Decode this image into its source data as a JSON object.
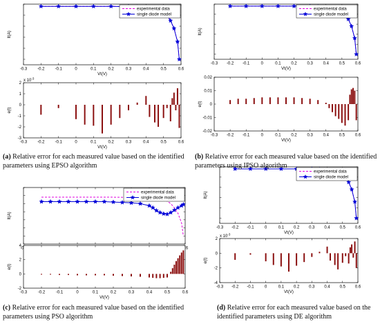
{
  "captions": [
    {
      "letter": "(a)",
      "text": " Relative error for each measured value based on the identified parameters using EPSO algorithm"
    },
    {
      "letter": "(b)",
      "text": " Relative error for each measured value based on the identified parameters using IPSO algorithm"
    },
    {
      "letter": "(c)",
      "text": " Relative error for each measured value based on the identified parameters using PSO algorithm"
    },
    {
      "letter": "(d)",
      "text": " Relative error for each measured value based on the identified parameters using DE algorithm"
    }
  ],
  "colors": {
    "experimental": "#e000e0",
    "model": "#0000d8",
    "bar": "#8b1010",
    "axis": "#000000"
  },
  "chart_data": [
    {
      "panel": "a-top",
      "type": "line",
      "xlabel": "Vt(V)",
      "ylabel": "It(A)",
      "xlim": [
        -0.3,
        0.6
      ],
      "ylim": [
        -0.3,
        0.8
      ],
      "xticks": [
        "-0.3",
        "-0.2",
        "-0.1",
        "0",
        "0.1",
        "0.2",
        "0.3",
        "0.4",
        "0.5",
        "0.6"
      ],
      "legend": {
        "position": "top-right",
        "entries": [
          "experimental data",
          "single diode model"
        ]
      },
      "series": [
        {
          "name": "experimental data",
          "style": "dashed",
          "x": [
            -0.2,
            -0.1,
            0,
            0.1,
            0.2,
            0.3,
            0.35,
            0.4,
            0.45,
            0.48,
            0.5,
            0.52,
            0.54,
            0.56,
            0.58,
            0.59
          ],
          "y": [
            0.76,
            0.76,
            0.76,
            0.76,
            0.76,
            0.755,
            0.75,
            0.74,
            0.72,
            0.69,
            0.66,
            0.6,
            0.5,
            0.36,
            0.12,
            -0.2
          ]
        },
        {
          "name": "single diode model",
          "style": "star",
          "x": [
            -0.2,
            -0.1,
            0,
            0.1,
            0.2,
            0.3,
            0.35,
            0.4,
            0.45,
            0.48,
            0.5,
            0.52,
            0.54,
            0.56,
            0.58,
            0.59
          ],
          "y": [
            0.76,
            0.76,
            0.76,
            0.76,
            0.76,
            0.755,
            0.75,
            0.74,
            0.72,
            0.69,
            0.66,
            0.6,
            0.5,
            0.36,
            0.12,
            -0.2
          ]
        }
      ]
    },
    {
      "panel": "a-bottom",
      "type": "bar",
      "xlabel": "Vt(V)",
      "ylabel": "e(t)",
      "exponent": "x 10",
      "xlim": [
        -0.3,
        0.6
      ],
      "ylim": [
        -3,
        2
      ],
      "xticks": [
        "-0.3",
        "-0.2",
        "-0.1",
        "0",
        "0.1",
        "0.2",
        "0.3",
        "0.4",
        "0.5",
        "0.6"
      ],
      "yticks": [
        "-3",
        "-2",
        "-1",
        "0",
        "1",
        "2"
      ],
      "x": [
        -0.2,
        -0.1,
        0,
        0.05,
        0.1,
        0.15,
        0.2,
        0.25,
        0.3,
        0.35,
        0.4,
        0.42,
        0.45,
        0.47,
        0.5,
        0.52,
        0.54,
        0.55,
        0.56,
        0.57,
        0.58,
        0.59
      ],
      "values": [
        -0.9,
        -0.3,
        -1.3,
        -1.8,
        -1.9,
        -2.6,
        -1.8,
        -1.2,
        -0.5,
        0.2,
        0.8,
        -1.1,
        -1.6,
        -2.0,
        -1.2,
        -0.3,
        -1.5,
        0.6,
        1.1,
        -0.5,
        1.5,
        -2.1
      ]
    },
    {
      "panel": "b-top",
      "type": "line",
      "xlabel": "Vt(V)",
      "ylabel": "It(A)",
      "xlim": [
        -0.3,
        0.6
      ],
      "ylim": [
        -0.3,
        0.8
      ],
      "xticks": [
        "-0.3",
        "-0.2",
        "-0.1",
        "0",
        "0.1",
        "0.2",
        "0.3",
        "0.4",
        "0.5",
        "0.6"
      ],
      "legend": {
        "position": "top-right",
        "entries": [
          "experimental data",
          "single diode model"
        ]
      },
      "series": [
        {
          "name": "experimental data",
          "style": "dashed",
          "x": [
            -0.2,
            -0.1,
            0,
            0.1,
            0.2,
            0.3,
            0.35,
            0.4,
            0.45,
            0.48,
            0.5,
            0.52,
            0.54,
            0.56,
            0.58,
            0.59
          ],
          "y": [
            0.76,
            0.76,
            0.76,
            0.76,
            0.76,
            0.755,
            0.75,
            0.74,
            0.72,
            0.69,
            0.66,
            0.6,
            0.5,
            0.36,
            0.12,
            -0.2
          ]
        },
        {
          "name": "single diode model",
          "style": "star",
          "x": [
            -0.2,
            -0.1,
            0,
            0.1,
            0.2,
            0.3,
            0.35,
            0.4,
            0.45,
            0.48,
            0.5,
            0.52,
            0.54,
            0.56,
            0.58,
            0.59
          ],
          "y": [
            0.76,
            0.76,
            0.76,
            0.76,
            0.76,
            0.755,
            0.75,
            0.74,
            0.72,
            0.69,
            0.66,
            0.6,
            0.5,
            0.36,
            0.12,
            -0.2
          ]
        }
      ]
    },
    {
      "panel": "b-bottom",
      "type": "bar",
      "xlabel": "Vt(V)",
      "ylabel": "e(t)",
      "xlim": [
        -0.3,
        0.6
      ],
      "ylim": [
        -0.02,
        0.02
      ],
      "xticks": [
        "-0.3",
        "-0.2",
        "-0.1",
        "0",
        "0.1",
        "0.2",
        "0.3",
        "0.4",
        "0.5",
        "0.6"
      ],
      "yticks": [
        "-0.02",
        "-0.01",
        "0",
        "0.01",
        "0.02"
      ],
      "x": [
        -0.2,
        -0.15,
        -0.1,
        -0.05,
        0,
        0.05,
        0.1,
        0.15,
        0.2,
        0.25,
        0.3,
        0.35,
        0.4,
        0.42,
        0.44,
        0.46,
        0.48,
        0.5,
        0.52,
        0.54,
        0.55,
        0.56,
        0.57,
        0.58,
        0.59
      ],
      "values": [
        0.003,
        0.004,
        0.004,
        0.0045,
        0.005,
        0.005,
        0.005,
        0.005,
        0.005,
        0.0045,
        0.004,
        0.003,
        0.001,
        -0.003,
        -0.006,
        -0.009,
        -0.011,
        -0.014,
        -0.016,
        -0.012,
        0.007,
        0.011,
        0.012,
        0.01,
        -0.012
      ]
    },
    {
      "panel": "c-top",
      "type": "line",
      "xlabel": "Vt(V)",
      "ylabel": "It(A)",
      "xlim": [
        -0.3,
        0.6
      ],
      "ylim": [
        -0.4,
        1.0
      ],
      "xticks": [
        "-0.3",
        "-0.2",
        "-0.1",
        "0",
        "0.1",
        "0.2",
        "0.3",
        "0.4",
        "0.5",
        "0.6"
      ],
      "legend": {
        "position": "top-right",
        "entries": [
          "experimental data",
          "single diode model"
        ]
      },
      "series": [
        {
          "name": "experimental data",
          "style": "dashed",
          "x": [
            -0.2,
            -0.1,
            0,
            0.1,
            0.2,
            0.3,
            0.35,
            0.4,
            0.45,
            0.48,
            0.5,
            0.52,
            0.54,
            0.56,
            0.58,
            0.59
          ],
          "y": [
            0.76,
            0.76,
            0.76,
            0.76,
            0.76,
            0.755,
            0.75,
            0.74,
            0.72,
            0.69,
            0.66,
            0.6,
            0.5,
            0.36,
            0.12,
            -0.2
          ]
        },
        {
          "name": "single diode model",
          "style": "star",
          "x": [
            -0.2,
            -0.15,
            -0.1,
            -0.05,
            0,
            0.05,
            0.1,
            0.15,
            0.2,
            0.25,
            0.3,
            0.35,
            0.4,
            0.42,
            0.44,
            0.46,
            0.48,
            0.5,
            0.52,
            0.54,
            0.56,
            0.58,
            0.59
          ],
          "y": [
            0.65,
            0.65,
            0.65,
            0.65,
            0.65,
            0.65,
            0.65,
            0.65,
            0.64,
            0.63,
            0.62,
            0.6,
            0.55,
            0.5,
            0.43,
            0.38,
            0.35,
            0.34,
            0.38,
            0.44,
            0.5,
            0.55,
            0.58
          ]
        }
      ]
    },
    {
      "panel": "c-bottom",
      "type": "bar",
      "xlabel": "Vt(V)",
      "ylabel": "e(t)",
      "xlim": [
        -0.3,
        0.6
      ],
      "ylim": [
        -2,
        4
      ],
      "xticks": [
        "-0.3",
        "-0.2",
        "-0.1",
        "0",
        "0.1",
        "0.2",
        "0.3",
        "0.4",
        "0.5",
        "0.6"
      ],
      "yticks": [
        "-2",
        "0",
        "2",
        "4"
      ],
      "x": [
        -0.2,
        -0.15,
        -0.1,
        -0.05,
        0,
        0.05,
        0.1,
        0.15,
        0.2,
        0.25,
        0.3,
        0.35,
        0.4,
        0.42,
        0.44,
        0.46,
        0.48,
        0.5,
        0.52,
        0.53,
        0.54,
        0.55,
        0.56,
        0.57,
        0.58,
        0.59
      ],
      "values": [
        -0.1,
        -0.1,
        -0.15,
        -0.15,
        -0.2,
        -0.2,
        -0.2,
        -0.2,
        -0.25,
        -0.3,
        -0.35,
        -0.4,
        -0.5,
        -0.55,
        -0.6,
        -0.6,
        -0.55,
        -0.5,
        0.3,
        0.8,
        1.3,
        1.8,
        2.2,
        2.6,
        3.0,
        3.3
      ]
    },
    {
      "panel": "d-top",
      "type": "line",
      "xlabel": "Vt(V)",
      "ylabel": "It(A)",
      "xlim": [
        -0.3,
        0.6
      ],
      "ylim": [
        -0.3,
        0.8
      ],
      "xticks": [
        "-0.3",
        "-0.2",
        "-0.1",
        "0",
        "0.1",
        "0.2",
        "0.3",
        "0.4",
        "0.5",
        "0.6"
      ],
      "legend": {
        "position": "top-right",
        "entries": [
          "experimental data",
          "single diode model"
        ]
      },
      "series": [
        {
          "name": "experimental data",
          "style": "dashed",
          "x": [
            -0.2,
            -0.1,
            0,
            0.1,
            0.2,
            0.3,
            0.35,
            0.4,
            0.45,
            0.48,
            0.5,
            0.52,
            0.54,
            0.56,
            0.58,
            0.59
          ],
          "y": [
            0.76,
            0.76,
            0.76,
            0.76,
            0.76,
            0.755,
            0.75,
            0.74,
            0.72,
            0.69,
            0.66,
            0.6,
            0.5,
            0.36,
            0.12,
            -0.2
          ]
        },
        {
          "name": "single diode model",
          "style": "star",
          "x": [
            -0.2,
            -0.1,
            0,
            0.1,
            0.2,
            0.3,
            0.35,
            0.4,
            0.45,
            0.48,
            0.5,
            0.52,
            0.54,
            0.56,
            0.58,
            0.59
          ],
          "y": [
            0.76,
            0.76,
            0.76,
            0.76,
            0.76,
            0.755,
            0.75,
            0.74,
            0.72,
            0.69,
            0.66,
            0.6,
            0.5,
            0.36,
            0.12,
            -0.2
          ]
        }
      ]
    },
    {
      "panel": "d-bottom",
      "type": "bar",
      "xlabel": "Vt(V)",
      "ylabel": "e(t)",
      "exponent": "x 10",
      "xlim": [
        -0.3,
        0.6
      ],
      "ylim": [
        -4,
        2
      ],
      "xticks": [
        "-0.3",
        "-0.2",
        "-0.1",
        "0",
        "0.1",
        "0.2",
        "0.3",
        "0.4",
        "0.5",
        "0.6"
      ],
      "yticks": [
        "-4",
        "-2",
        "0",
        "2"
      ],
      "x": [
        -0.2,
        -0.1,
        0,
        0.05,
        0.1,
        0.15,
        0.2,
        0.25,
        0.3,
        0.35,
        0.4,
        0.42,
        0.45,
        0.47,
        0.5,
        0.52,
        0.54,
        0.55,
        0.56,
        0.57,
        0.58,
        0.59
      ],
      "values": [
        -0.9,
        -0.2,
        -1.1,
        -1.6,
        -1.8,
        -2.5,
        -1.7,
        -1.2,
        -0.5,
        0.2,
        0.9,
        -1.0,
        -1.6,
        -2.2,
        -1.3,
        -0.4,
        -1.4,
        0.8,
        1.2,
        -0.6,
        1.6,
        -2.0
      ]
    }
  ]
}
